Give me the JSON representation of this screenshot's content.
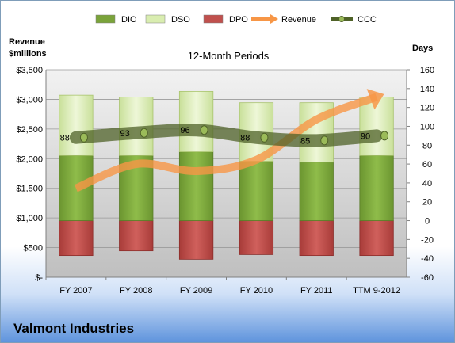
{
  "company": "Valmont Industries",
  "chart_data": {
    "type": "bar",
    "title": "12-Month Periods",
    "categories": [
      "FY 2007",
      "FY 2008",
      "FY 2009",
      "FY 2010",
      "FY 2011",
      "TTM 9-2012"
    ],
    "left_axis": {
      "label_line1": "Revenue",
      "label_line2": "$millions",
      "range": [
        0,
        3500
      ],
      "ticks": [
        "$-",
        "$500",
        "$1,000",
        "$1,500",
        "$2,000",
        "$2,500",
        "$3,000",
        "$3,500"
      ],
      "tick_values": [
        0,
        500,
        1000,
        1500,
        2000,
        2500,
        3000,
        3500
      ]
    },
    "right_axis": {
      "label": "Days",
      "range": [
        -60,
        160
      ],
      "ticks": [
        "-60",
        "-40",
        "-20",
        "0",
        "20",
        "40",
        "60",
        "80",
        "100",
        "120",
        "140",
        "160"
      ],
      "tick_values": [
        -60,
        -40,
        -20,
        0,
        20,
        40,
        60,
        80,
        100,
        120,
        140,
        160
      ]
    },
    "legend": [
      {
        "name": "DIO",
        "color": "#7aa33a",
        "kind": "bar"
      },
      {
        "name": "DSO",
        "color": "#d9edb0",
        "kind": "bar"
      },
      {
        "name": "DPO",
        "color": "#c0504d",
        "kind": "bar"
      },
      {
        "name": "Revenue",
        "color": "#f79646",
        "kind": "arrow"
      },
      {
        "name": "CCC",
        "color": "#4f6228",
        "kind": "line"
      }
    ],
    "series": [
      {
        "name": "DIO",
        "values": [
          69,
          69,
          73,
          63,
          62,
          69
        ]
      },
      {
        "name": "DSO",
        "values": [
          64,
          62,
          64,
          62,
          63,
          62
        ]
      },
      {
        "name": "DPO",
        "values": [
          -37,
          -32,
          -41,
          -36,
          -37,
          -37
        ]
      },
      {
        "name": "Revenue",
        "values": [
          1500,
          1910,
          1790,
          1980,
          2660,
          3040
        ]
      },
      {
        "name": "CCC",
        "values": [
          88,
          93,
          96,
          88,
          85,
          90
        ]
      }
    ],
    "ccc_labels": [
      "88",
      "93",
      "96",
      "88",
      "85",
      "90"
    ],
    "grid": true,
    "legend_position": "top"
  }
}
